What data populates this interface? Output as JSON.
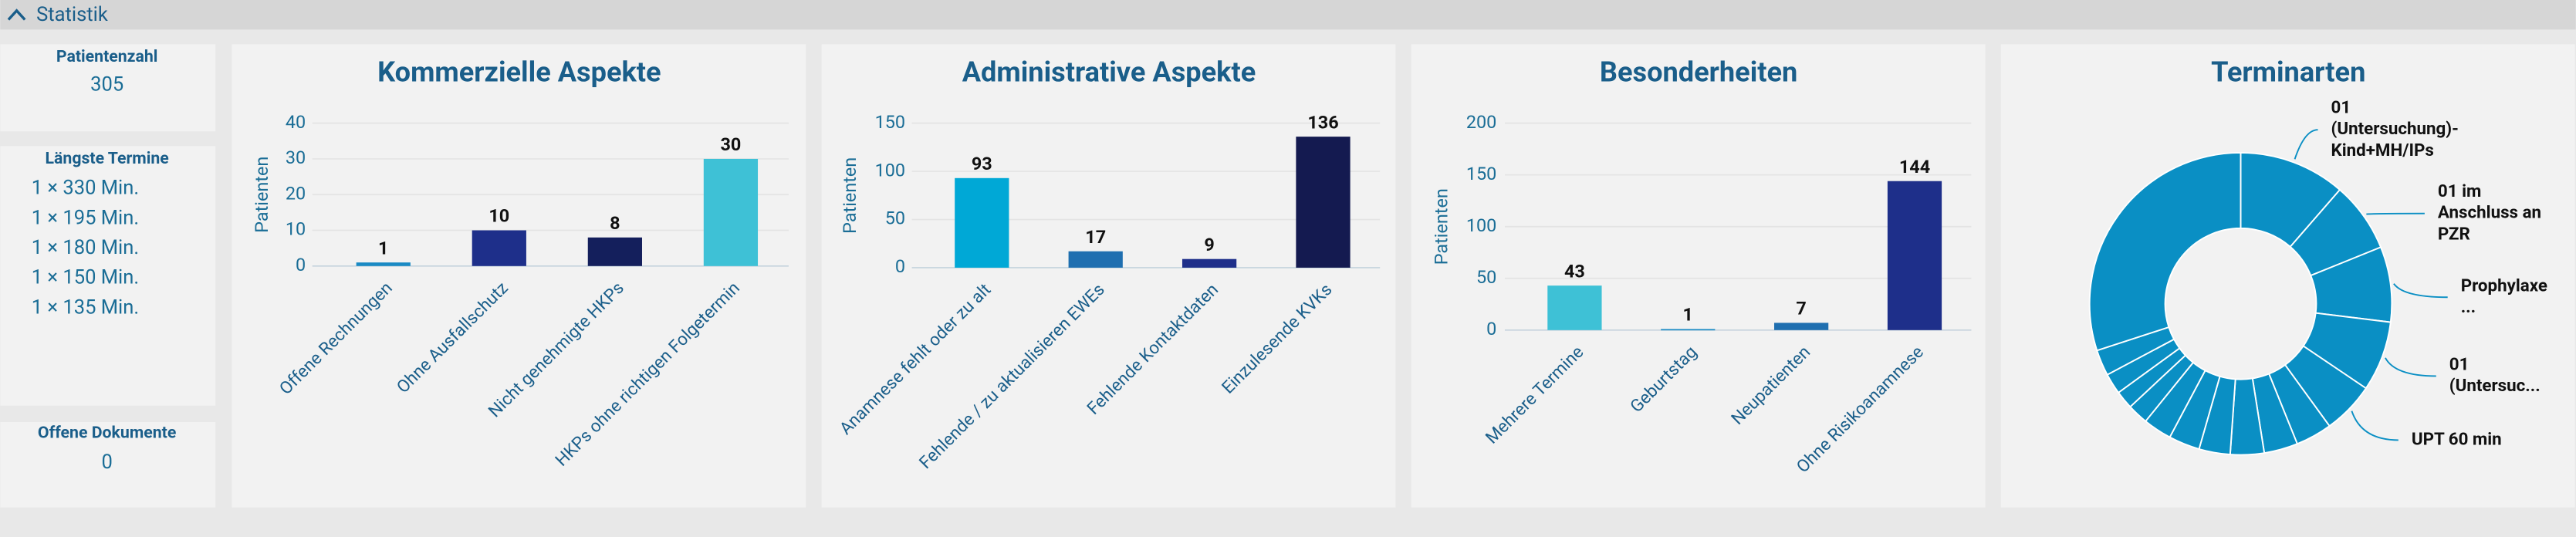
{
  "header": {
    "title": "Statistik"
  },
  "stats": {
    "patient_count": {
      "label": "Patientenzahl",
      "value": 305
    },
    "longest": {
      "label": "Längste Termine",
      "items": [
        "1 × 330 Min.",
        "1 × 195 Min.",
        "1 × 180 Min.",
        "1 × 150 Min.",
        "1 × 135 Min."
      ]
    },
    "open_docs": {
      "label": "Offene Dokumente",
      "value": 0
    }
  },
  "chart_data": [
    {
      "type": "bar",
      "title": "Kommerzielle Aspekte",
      "y_label": "Patienten",
      "categories": [
        "Offene Rechnungen",
        "Ohne Ausfallschutz",
        "Nicht genehmigte HKPs",
        "HKPs ohne richtigen Folgetermin"
      ],
      "values": [
        1,
        10,
        8,
        30
      ],
      "colors": [
        "#1a8ac4",
        "#1e2f8a",
        "#141f5c",
        "#3ec1d6"
      ],
      "ylim": [
        0,
        40
      ],
      "yticks": [
        0,
        10,
        20,
        30,
        40
      ],
      "grid": true
    },
    {
      "type": "bar",
      "title": "Administrative Aspekte",
      "y_label": "Patienten",
      "categories": [
        "Anamnese fehlt oder zu alt",
        "Fehlende / zu aktualisieren EWEs",
        "Fehlende Kontaktdaten",
        "Einzulesende KVKs"
      ],
      "values": [
        93,
        17,
        9,
        136
      ],
      "colors": [
        "#00a8d6",
        "#1f6fb0",
        "#1e2f8a",
        "#141a50"
      ],
      "ylim": [
        0,
        150
      ],
      "yticks": [
        0,
        50,
        100,
        150
      ],
      "grid": true
    },
    {
      "type": "bar",
      "title": "Besonderheiten",
      "y_label": "Patienten",
      "categories": [
        "Mehrere Termine",
        "Geburtstag",
        "Neupatienten",
        "Ohne Risikoanamnese"
      ],
      "values": [
        43,
        1,
        7,
        144
      ],
      "colors": [
        "#3ec1d6",
        "#1a8ac4",
        "#1f6fb0",
        "#1e2f8a"
      ],
      "ylim": [
        0,
        200
      ],
      "yticks": [
        0,
        50,
        100,
        150,
        200
      ],
      "grid": true
    },
    {
      "type": "donut",
      "title": "Terminarten",
      "categories": [
        "01 (Untersuchung)-Kind+MH/IPs",
        "01 im Anschluss an PZR",
        "Prophylaxe ...",
        "01 (Untersuc...",
        "UPT 60 min",
        null,
        null,
        null,
        null,
        null,
        null,
        null,
        null,
        null,
        null,
        null
      ],
      "values": [
        41,
        27,
        29,
        27,
        20,
        14,
        13,
        13,
        12,
        12,
        11,
        8,
        7,
        8,
        10,
        108
      ],
      "color": "#0a8fc4"
    }
  ]
}
